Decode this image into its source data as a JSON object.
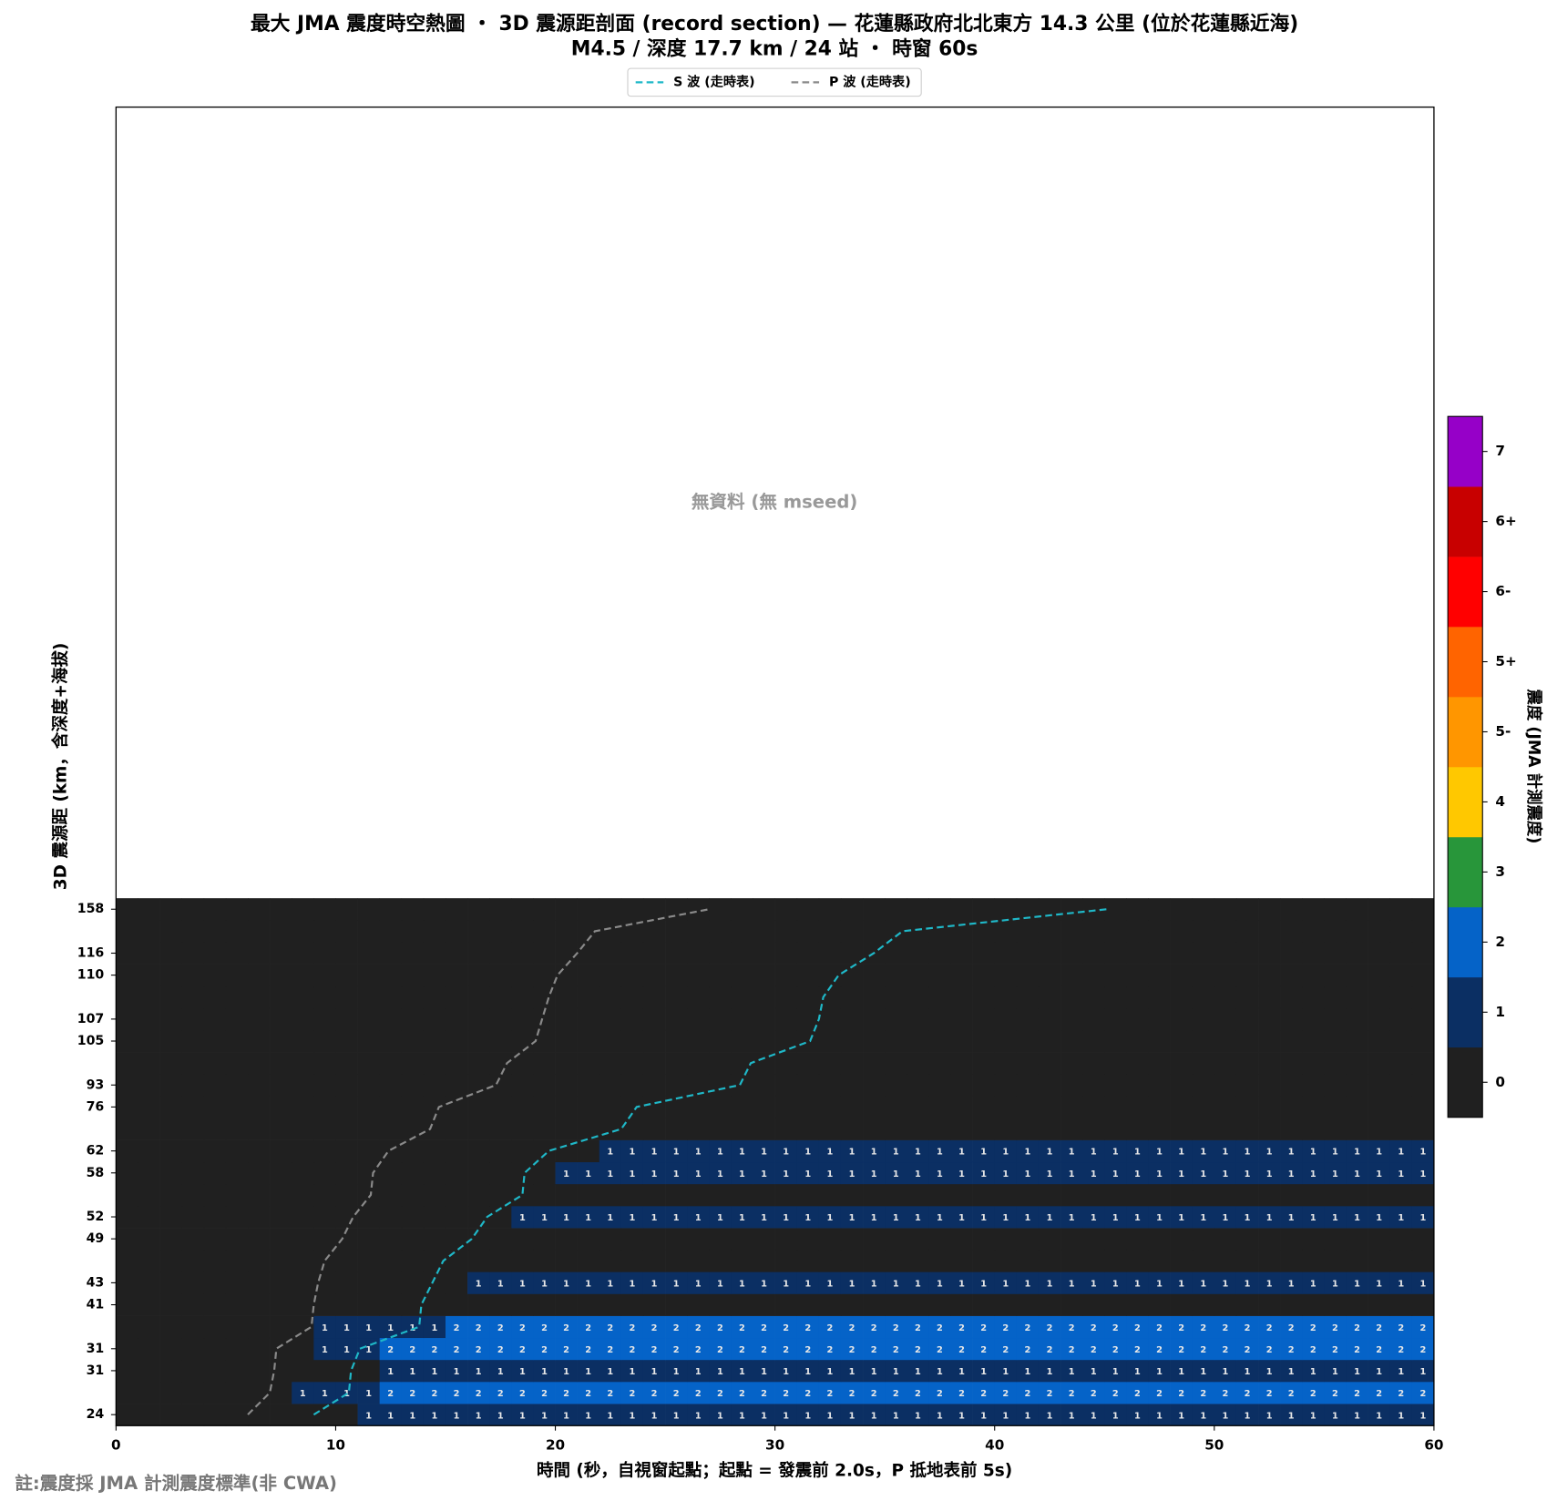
{
  "chart_data": {
    "type": "heatmap",
    "title": "最大 JMA 震度時空熱圖 ・ 3D 震源距剖面 (record section) — 花蓮縣政府北北東方  14.3  公里 (位於花蓮縣近海)",
    "subtitle": "M4.5 / 深度 17.7 km / 24 站 ・ 時窗 60s",
    "xlabel": "時間 (秒，自視窗起點；起點 = 發震前 2.0s，P 抵地表前 5s)",
    "ylabel": "3D 震源距 (km，含深度+海拔)",
    "annotation": "無資料 (無 mseed)",
    "footnote": "註:震度採 JMA 計測震度標準(非 CWA)",
    "xlim": [
      0,
      60
    ],
    "xticks": [
      0,
      10,
      20,
      30,
      40,
      50,
      60
    ],
    "ylim": [
      -0.5,
      59.5
    ],
    "rows": [
      "24",
      null,
      "31",
      "31",
      null,
      "41",
      "43",
      null,
      "49",
      "52",
      null,
      "58",
      "62",
      null,
      "76",
      "93",
      null,
      "105",
      "107",
      null,
      "110",
      "116",
      null,
      "158"
    ],
    "z": [
      [
        0,
        0,
        0,
        0,
        0,
        0,
        0,
        0,
        0,
        0,
        0,
        1,
        1,
        1,
        1,
        1,
        1,
        1,
        1,
        1,
        1,
        1,
        1,
        1,
        1,
        1,
        1,
        1,
        1,
        1,
        1,
        1,
        1,
        1,
        1,
        1,
        1,
        1,
        1,
        1,
        1,
        1,
        1,
        1,
        1,
        1,
        1,
        1,
        1,
        1,
        1,
        1,
        1,
        1,
        1,
        1,
        1,
        1,
        1,
        1
      ],
      [
        0,
        0,
        0,
        0,
        0,
        0,
        0,
        0,
        1,
        1,
        1,
        1,
        2,
        2,
        2,
        2,
        2,
        2,
        2,
        2,
        2,
        2,
        2,
        2,
        2,
        2,
        2,
        2,
        2,
        2,
        2,
        2,
        2,
        2,
        2,
        2,
        2,
        2,
        2,
        2,
        2,
        2,
        2,
        2,
        2,
        2,
        2,
        2,
        2,
        2,
        2,
        2,
        2,
        2,
        2,
        2,
        2,
        2,
        2,
        2
      ],
      [
        0,
        0,
        0,
        0,
        0,
        0,
        0,
        0,
        0,
        0,
        0,
        0,
        1,
        1,
        1,
        1,
        1,
        1,
        1,
        1,
        1,
        1,
        1,
        1,
        1,
        1,
        1,
        1,
        1,
        1,
        1,
        1,
        1,
        1,
        1,
        1,
        1,
        1,
        1,
        1,
        1,
        1,
        1,
        1,
        1,
        1,
        1,
        1,
        1,
        1,
        1,
        1,
        1,
        1,
        1,
        1,
        1,
        1,
        1,
        1
      ],
      [
        0,
        0,
        0,
        0,
        0,
        0,
        0,
        0,
        0,
        1,
        1,
        1,
        2,
        2,
        2,
        2,
        2,
        2,
        2,
        2,
        2,
        2,
        2,
        2,
        2,
        2,
        2,
        2,
        2,
        2,
        2,
        2,
        2,
        2,
        2,
        2,
        2,
        2,
        2,
        2,
        2,
        2,
        2,
        2,
        2,
        2,
        2,
        2,
        2,
        2,
        2,
        2,
        2,
        2,
        2,
        2,
        2,
        2,
        2,
        2
      ],
      [
        0,
        0,
        0,
        0,
        0,
        0,
        0,
        0,
        0,
        1,
        1,
        1,
        1,
        1,
        1,
        2,
        2,
        2,
        2,
        2,
        2,
        2,
        2,
        2,
        2,
        2,
        2,
        2,
        2,
        2,
        2,
        2,
        2,
        2,
        2,
        2,
        2,
        2,
        2,
        2,
        2,
        2,
        2,
        2,
        2,
        2,
        2,
        2,
        2,
        2,
        2,
        2,
        2,
        2,
        2,
        2,
        2,
        2,
        2,
        2
      ],
      [
        0,
        0,
        0,
        0,
        0,
        0,
        0,
        0,
        0,
        0,
        0,
        0,
        0,
        0,
        0,
        0,
        0,
        0,
        0,
        0,
        0,
        0,
        0,
        0,
        0,
        0,
        0,
        0,
        0,
        0,
        0,
        0,
        0,
        0,
        0,
        0,
        0,
        0,
        0,
        0,
        0,
        0,
        0,
        0,
        0,
        0,
        0,
        0,
        0,
        0,
        0,
        0,
        0,
        0,
        0,
        0,
        0,
        0,
        0,
        0
      ],
      [
        0,
        0,
        0,
        0,
        0,
        0,
        0,
        0,
        0,
        0,
        0,
        0,
        0,
        0,
        0,
        0,
        1,
        1,
        1,
        1,
        1,
        1,
        1,
        1,
        1,
        1,
        1,
        1,
        1,
        1,
        1,
        1,
        1,
        1,
        1,
        1,
        1,
        1,
        1,
        1,
        1,
        1,
        1,
        1,
        1,
        1,
        1,
        1,
        1,
        1,
        1,
        1,
        1,
        1,
        1,
        1,
        1,
        1,
        1,
        1
      ],
      [
        0,
        0,
        0,
        0,
        0,
        0,
        0,
        0,
        0,
        0,
        0,
        0,
        0,
        0,
        0,
        0,
        0,
        0,
        0,
        0,
        0,
        0,
        0,
        0,
        0,
        0,
        0,
        0,
        0,
        0,
        0,
        0,
        0,
        0,
        0,
        0,
        0,
        0,
        0,
        0,
        0,
        0,
        0,
        0,
        0,
        0,
        0,
        0,
        0,
        0,
        0,
        0,
        0,
        0,
        0,
        0,
        0,
        0,
        0,
        0
      ],
      [
        0,
        0,
        0,
        0,
        0,
        0,
        0,
        0,
        0,
        0,
        0,
        0,
        0,
        0,
        0,
        0,
        0,
        0,
        0,
        0,
        0,
        0,
        0,
        0,
        0,
        0,
        0,
        0,
        0,
        0,
        0,
        0,
        0,
        0,
        0,
        0,
        0,
        0,
        0,
        0,
        0,
        0,
        0,
        0,
        0,
        0,
        0,
        0,
        0,
        0,
        0,
        0,
        0,
        0,
        0,
        0,
        0,
        0,
        0,
        0
      ],
      [
        0,
        0,
        0,
        0,
        0,
        0,
        0,
        0,
        0,
        0,
        0,
        0,
        0,
        0,
        0,
        0,
        0,
        0,
        1,
        1,
        1,
        1,
        1,
        1,
        1,
        1,
        1,
        1,
        1,
        1,
        1,
        1,
        1,
        1,
        1,
        1,
        1,
        1,
        1,
        1,
        1,
        1,
        1,
        1,
        1,
        1,
        1,
        1,
        1,
        1,
        1,
        1,
        1,
        1,
        1,
        1,
        1,
        1,
        1,
        1
      ],
      [
        0,
        0,
        0,
        0,
        0,
        0,
        0,
        0,
        0,
        0,
        0,
        0,
        0,
        0,
        0,
        0,
        0,
        0,
        0,
        0,
        0,
        0,
        0,
        0,
        0,
        0,
        0,
        0,
        0,
        0,
        0,
        0,
        0,
        0,
        0,
        0,
        0,
        0,
        0,
        0,
        0,
        0,
        0,
        0,
        0,
        0,
        0,
        0,
        0,
        0,
        0,
        0,
        0,
        0,
        0,
        0,
        0,
        0,
        0,
        0
      ],
      [
        0,
        0,
        0,
        0,
        0,
        0,
        0,
        0,
        0,
        0,
        0,
        0,
        0,
        0,
        0,
        0,
        0,
        0,
        0,
        0,
        1,
        1,
        1,
        1,
        1,
        1,
        1,
        1,
        1,
        1,
        1,
        1,
        1,
        1,
        1,
        1,
        1,
        1,
        1,
        1,
        1,
        1,
        1,
        1,
        1,
        1,
        1,
        1,
        1,
        1,
        1,
        1,
        1,
        1,
        1,
        1,
        1,
        1,
        1,
        1
      ],
      [
        0,
        0,
        0,
        0,
        0,
        0,
        0,
        0,
        0,
        0,
        0,
        0,
        0,
        0,
        0,
        0,
        0,
        0,
        0,
        0,
        0,
        0,
        1,
        1,
        1,
        1,
        1,
        1,
        1,
        1,
        1,
        1,
        1,
        1,
        1,
        1,
        1,
        1,
        1,
        1,
        1,
        1,
        1,
        1,
        1,
        1,
        1,
        1,
        1,
        1,
        1,
        1,
        1,
        1,
        1,
        1,
        1,
        1,
        1,
        1
      ],
      [
        0,
        0,
        0,
        0,
        0,
        0,
        0,
        0,
        0,
        0,
        0,
        0,
        0,
        0,
        0,
        0,
        0,
        0,
        0,
        0,
        0,
        0,
        0,
        0,
        0,
        0,
        0,
        0,
        0,
        0,
        0,
        0,
        0,
        0,
        0,
        0,
        0,
        0,
        0,
        0,
        0,
        0,
        0,
        0,
        0,
        0,
        0,
        0,
        0,
        0,
        0,
        0,
        0,
        0,
        0,
        0,
        0,
        0,
        0,
        0
      ],
      [
        0,
        0,
        0,
        0,
        0,
        0,
        0,
        0,
        0,
        0,
        0,
        0,
        0,
        0,
        0,
        0,
        0,
        0,
        0,
        0,
        0,
        0,
        0,
        0,
        0,
        0,
        0,
        0,
        0,
        0,
        0,
        0,
        0,
        0,
        0,
        0,
        0,
        0,
        0,
        0,
        0,
        0,
        0,
        0,
        0,
        0,
        0,
        0,
        0,
        0,
        0,
        0,
        0,
        0,
        0,
        0,
        0,
        0,
        0,
        0
      ],
      [
        0,
        0,
        0,
        0,
        0,
        0,
        0,
        0,
        0,
        0,
        0,
        0,
        0,
        0,
        0,
        0,
        0,
        0,
        0,
        0,
        0,
        0,
        0,
        0,
        0,
        0,
        0,
        0,
        0,
        0,
        0,
        0,
        0,
        0,
        0,
        0,
        0,
        0,
        0,
        0,
        0,
        0,
        0,
        0,
        0,
        0,
        0,
        0,
        0,
        0,
        0,
        0,
        0,
        0,
        0,
        0,
        0,
        0,
        0,
        0
      ],
      [
        0,
        0,
        0,
        0,
        0,
        0,
        0,
        0,
        0,
        0,
        0,
        0,
        0,
        0,
        0,
        0,
        0,
        0,
        0,
        0,
        0,
        0,
        0,
        0,
        0,
        0,
        0,
        0,
        0,
        0,
        0,
        0,
        0,
        0,
        0,
        0,
        0,
        0,
        0,
        0,
        0,
        0,
        0,
        0,
        0,
        0,
        0,
        0,
        0,
        0,
        0,
        0,
        0,
        0,
        0,
        0,
        0,
        0,
        0,
        0
      ],
      [
        0,
        0,
        0,
        0,
        0,
        0,
        0,
        0,
        0,
        0,
        0,
        0,
        0,
        0,
        0,
        0,
        0,
        0,
        0,
        0,
        0,
        0,
        0,
        0,
        0,
        0,
        0,
        0,
        0,
        0,
        0,
        0,
        0,
        0,
        0,
        0,
        0,
        0,
        0,
        0,
        0,
        0,
        0,
        0,
        0,
        0,
        0,
        0,
        0,
        0,
        0,
        0,
        0,
        0,
        0,
        0,
        0,
        0,
        0,
        0
      ],
      [
        0,
        0,
        0,
        0,
        0,
        0,
        0,
        0,
        0,
        0,
        0,
        0,
        0,
        0,
        0,
        0,
        0,
        0,
        0,
        0,
        0,
        0,
        0,
        0,
        0,
        0,
        0,
        0,
        0,
        0,
        0,
        0,
        0,
        0,
        0,
        0,
        0,
        0,
        0,
        0,
        0,
        0,
        0,
        0,
        0,
        0,
        0,
        0,
        0,
        0,
        0,
        0,
        0,
        0,
        0,
        0,
        0,
        0,
        0,
        0
      ],
      [
        0,
        0,
        0,
        0,
        0,
        0,
        0,
        0,
        0,
        0,
        0,
        0,
        0,
        0,
        0,
        0,
        0,
        0,
        0,
        0,
        0,
        0,
        0,
        0,
        0,
        0,
        0,
        0,
        0,
        0,
        0,
        0,
        0,
        0,
        0,
        0,
        0,
        0,
        0,
        0,
        0,
        0,
        0,
        0,
        0,
        0,
        0,
        0,
        0,
        0,
        0,
        0,
        0,
        0,
        0,
        0,
        0,
        0,
        0,
        0
      ],
      [
        0,
        0,
        0,
        0,
        0,
        0,
        0,
        0,
        0,
        0,
        0,
        0,
        0,
        0,
        0,
        0,
        0,
        0,
        0,
        0,
        0,
        0,
        0,
        0,
        0,
        0,
        0,
        0,
        0,
        0,
        0,
        0,
        0,
        0,
        0,
        0,
        0,
        0,
        0,
        0,
        0,
        0,
        0,
        0,
        0,
        0,
        0,
        0,
        0,
        0,
        0,
        0,
        0,
        0,
        0,
        0,
        0,
        0,
        0,
        0
      ],
      [
        0,
        0,
        0,
        0,
        0,
        0,
        0,
        0,
        0,
        0,
        0,
        0,
        0,
        0,
        0,
        0,
        0,
        0,
        0,
        0,
        0,
        0,
        0,
        0,
        0,
        0,
        0,
        0,
        0,
        0,
        0,
        0,
        0,
        0,
        0,
        0,
        0,
        0,
        0,
        0,
        0,
        0,
        0,
        0,
        0,
        0,
        0,
        0,
        0,
        0,
        0,
        0,
        0,
        0,
        0,
        0,
        0,
        0,
        0,
        0
      ],
      [
        0,
        0,
        0,
        0,
        0,
        0,
        0,
        0,
        0,
        0,
        0,
        0,
        0,
        0,
        0,
        0,
        0,
        0,
        0,
        0,
        0,
        0,
        0,
        0,
        0,
        0,
        0,
        0,
        0,
        0,
        0,
        0,
        0,
        0,
        0,
        0,
        0,
        0,
        0,
        0,
        0,
        0,
        0,
        0,
        0,
        0,
        0,
        0,
        0,
        0,
        0,
        0,
        0,
        0,
        0,
        0,
        0,
        0,
        0,
        0
      ],
      [
        0,
        0,
        0,
        0,
        0,
        0,
        0,
        0,
        0,
        0,
        0,
        0,
        0,
        0,
        0,
        0,
        0,
        0,
        0,
        0,
        0,
        0,
        0,
        0,
        0,
        0,
        0,
        0,
        0,
        0,
        0,
        0,
        0,
        0,
        0,
        0,
        0,
        0,
        0,
        0,
        0,
        0,
        0,
        0,
        0,
        0,
        0,
        0,
        0,
        0,
        0,
        0,
        0,
        0,
        0,
        0,
        0,
        0,
        0,
        0
      ]
    ],
    "lines": [
      {
        "name": "S 波 (走時表)",
        "color": "#1fb8c8",
        "times": [
          9.0,
          10.6,
          10.7,
          11.1,
          13.8,
          13.9,
          14.4,
          14.9,
          16.2,
          16.9,
          18.5,
          18.6,
          19.7,
          23.0,
          23.7,
          28.4,
          28.9,
          31.6,
          32.0,
          32.2,
          32.9,
          34.5,
          35.8,
          45.1
        ]
      },
      {
        "name": "P 波 (走時表)",
        "color": "#8a8a8a",
        "times": [
          6.0,
          7.0,
          7.2,
          7.3,
          8.9,
          9.0,
          9.2,
          9.5,
          10.3,
          10.8,
          11.6,
          11.7,
          12.4,
          14.3,
          14.7,
          17.3,
          17.8,
          19.1,
          19.4,
          19.7,
          20.1,
          21.0,
          21.8,
          27.0
        ]
      }
    ],
    "colorbar": {
      "label": "震度 (JMA 計測震度)",
      "labels": [
        "0",
        "1",
        "2",
        "3",
        "4",
        "5-",
        "5+",
        "6-",
        "6+",
        "7"
      ],
      "colors": [
        "#202020",
        "#0b2f63",
        "#0563c8",
        "#28963a",
        "#ffc800",
        "#ff9600",
        "#ff6400",
        "#ff0000",
        "#c80000",
        "#9600c8"
      ]
    }
  }
}
